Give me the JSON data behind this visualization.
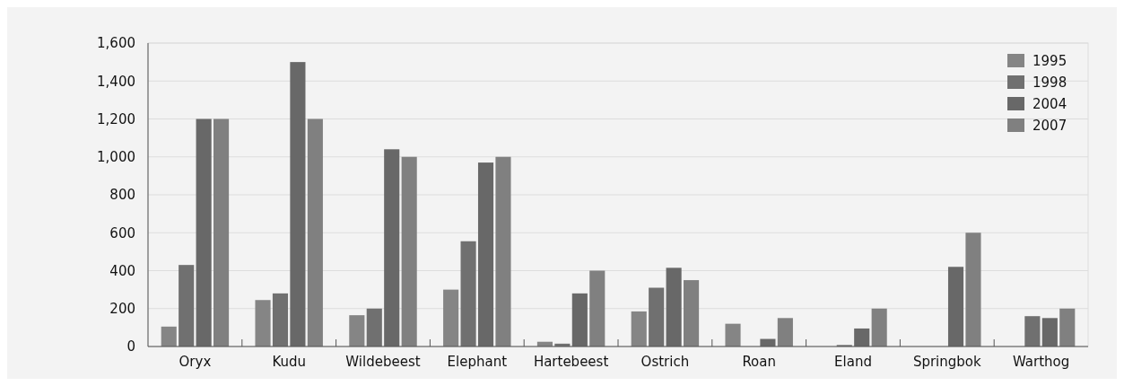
{
  "chart_data": {
    "type": "bar",
    "categories": [
      "Oryx",
      "Kudu",
      "Wildebeest",
      "Elephant",
      "Hartebeest",
      "Ostrich",
      "Roan",
      "Eland",
      "Springbok",
      "Warthog"
    ],
    "series": [
      {
        "name": "1995",
        "color": "#858585",
        "values": [
          105,
          245,
          165,
          300,
          25,
          185,
          120,
          null,
          null,
          null
        ]
      },
      {
        "name": "1998",
        "color": "#707070",
        "values": [
          430,
          280,
          200,
          555,
          15,
          310,
          null,
          8,
          null,
          160
        ]
      },
      {
        "name": "2004",
        "color": "#686868",
        "values": [
          1200,
          1500,
          1040,
          970,
          280,
          415,
          40,
          95,
          420,
          150
        ]
      },
      {
        "name": "2007",
        "color": "#808080",
        "values": [
          1200,
          1200,
          1000,
          1000,
          400,
          350,
          150,
          200,
          600,
          200
        ]
      }
    ],
    "ylim": [
      0,
      1600
    ],
    "yticks": [
      0,
      {
        "value": 200,
        "label": "200"
      },
      {
        "value": 400,
        "label": "400"
      },
      {
        "value": 600,
        "label": "600"
      },
      {
        "value": 800,
        "label": "800"
      },
      {
        "value": 1000,
        "label": "1,000"
      },
      {
        "value": 1200,
        "label": "1,200"
      },
      {
        "value": 1400,
        "label": "1,400"
      },
      {
        "value": 1600,
        "label": "1,600"
      }
    ],
    "grid": "y",
    "legend": "top right"
  }
}
